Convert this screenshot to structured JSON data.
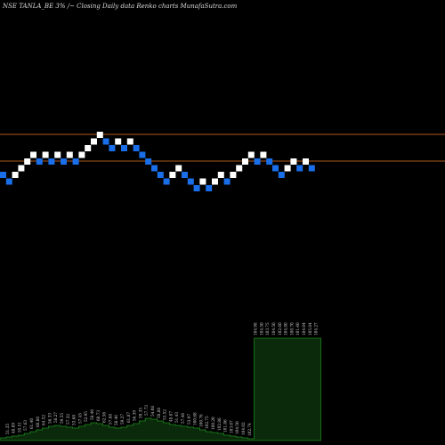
{
  "header": {
    "title": "NSE TANLA_BE 3% /~  Closing Daily data  Renko  charts MunafaSutra.com"
  },
  "colors": {
    "up_brick": "#ffffff",
    "down_brick": "#1a6ee8",
    "level_line": "#b05a1e",
    "volume_fill": "#0b2a0b",
    "volume_stroke": "#1e8a1e"
  },
  "chart_data": {
    "type": "renko",
    "bricks": [
      {
        "dir": "down",
        "level": 1
      },
      {
        "dir": "down",
        "level": 0
      },
      {
        "dir": "up",
        "level": 1
      },
      {
        "dir": "up",
        "level": 2
      },
      {
        "dir": "up",
        "level": 3
      },
      {
        "dir": "up",
        "level": 4
      },
      {
        "dir": "down",
        "level": 3
      },
      {
        "dir": "up",
        "level": 4
      },
      {
        "dir": "down",
        "level": 3
      },
      {
        "dir": "up",
        "level": 4
      },
      {
        "dir": "down",
        "level": 3
      },
      {
        "dir": "up",
        "level": 4
      },
      {
        "dir": "down",
        "level": 3
      },
      {
        "dir": "up",
        "level": 4
      },
      {
        "dir": "up",
        "level": 5
      },
      {
        "dir": "up",
        "level": 6
      },
      {
        "dir": "up",
        "level": 7
      },
      {
        "dir": "down",
        "level": 6
      },
      {
        "dir": "down",
        "level": 5
      },
      {
        "dir": "up",
        "level": 6
      },
      {
        "dir": "down",
        "level": 5
      },
      {
        "dir": "up",
        "level": 6
      },
      {
        "dir": "down",
        "level": 5
      },
      {
        "dir": "down",
        "level": 4
      },
      {
        "dir": "down",
        "level": 3
      },
      {
        "dir": "down",
        "level": 2
      },
      {
        "dir": "down",
        "level": 1
      },
      {
        "dir": "down",
        "level": 0
      },
      {
        "dir": "up",
        "level": 1
      },
      {
        "dir": "up",
        "level": 2
      },
      {
        "dir": "down",
        "level": 1
      },
      {
        "dir": "down",
        "level": 0
      },
      {
        "dir": "down",
        "level": -1
      },
      {
        "dir": "up",
        "level": 0
      },
      {
        "dir": "down",
        "level": -1
      },
      {
        "dir": "up",
        "level": 0
      },
      {
        "dir": "up",
        "level": 1
      },
      {
        "dir": "down",
        "level": 0
      },
      {
        "dir": "up",
        "level": 1
      },
      {
        "dir": "up",
        "level": 2
      },
      {
        "dir": "up",
        "level": 3
      },
      {
        "dir": "up",
        "level": 4
      },
      {
        "dir": "down",
        "level": 3
      },
      {
        "dir": "up",
        "level": 4
      },
      {
        "dir": "down",
        "level": 3
      },
      {
        "dir": "down",
        "level": 2
      },
      {
        "dir": "down",
        "level": 1
      },
      {
        "dir": "up",
        "level": 2
      },
      {
        "dir": "up",
        "level": 3
      },
      {
        "dir": "down",
        "level": 2
      },
      {
        "dir": "up",
        "level": 3
      },
      {
        "dir": "down",
        "level": 2
      }
    ],
    "level_lines": [
      {
        "level": 7
      },
      {
        "level": 3
      }
    ],
    "volume_labels": [
      "51.35",
      "48.89",
      "55.51",
      "57.63",
      "61.40",
      "60.86",
      "64.52",
      "56.33",
      "58.27",
      "59.55",
      "57.32",
      "53.68",
      "57.45",
      "52.95",
      "58.40",
      "60.73",
      "62.56",
      "57.88",
      "58.46",
      "59.27",
      "61.87",
      "56.39",
      "59.35",
      "57.73",
      "54.08",
      "50.88",
      "53.52",
      "48.87",
      "51.43",
      "57.46",
      "53.97",
      "100.68",
      "100.76",
      "102.75",
      "100.20",
      "102.86",
      "101.86",
      "103.07",
      "104.50",
      "104.02",
      "102.74",
      "104.98",
      "104.50",
      "103.75",
      "104.50",
      "102.60",
      "104.80",
      "100.70",
      "101.40",
      "104.04",
      "105.04",
      "104.27"
    ],
    "volume_bars": [
      3,
      4,
      5,
      6,
      8,
      10,
      12,
      14,
      16,
      17,
      16,
      15,
      14,
      16,
      18,
      20,
      19,
      17,
      15,
      14,
      15,
      17,
      19,
      22,
      25,
      24,
      22,
      20,
      18,
      17,
      16,
      15,
      14,
      12,
      10,
      9,
      8,
      6,
      5,
      4,
      3,
      2,
      115,
      115,
      115,
      115,
      115,
      115,
      115,
      115,
      115,
      115,
      115
    ]
  }
}
